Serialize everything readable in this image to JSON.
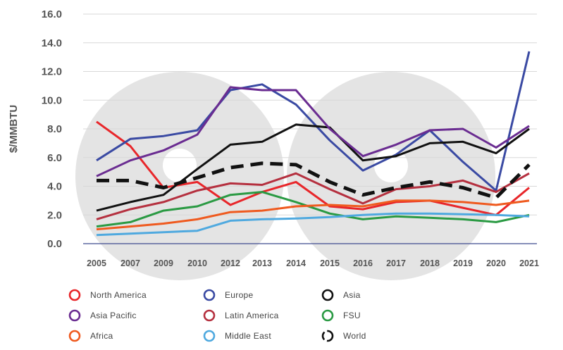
{
  "chart_data": {
    "type": "line",
    "title": "",
    "xlabel": "",
    "ylabel": "$/MMBTU",
    "ylim": [
      0,
      16
    ],
    "yticks": [
      "0.0",
      "2.0",
      "4.0",
      "6.0",
      "8.0",
      "10.0",
      "12.0",
      "14.0",
      "16.0"
    ],
    "categories": [
      "2005",
      "2007",
      "2009",
      "2010",
      "2012",
      "2013",
      "2014",
      "2015",
      "2016",
      "2017",
      "2018",
      "2019",
      "2020",
      "2021"
    ],
    "series": [
      {
        "name": "North America",
        "color": "#e8262a",
        "dashed": false,
        "values": [
          8.5,
          6.8,
          3.9,
          4.3,
          2.7,
          3.6,
          4.3,
          2.6,
          2.4,
          2.9,
          3.0,
          2.5,
          2.0,
          3.9
        ]
      },
      {
        "name": "Europe",
        "color": "#3a4aa3",
        "dashed": false,
        "values": [
          5.8,
          7.3,
          7.5,
          7.9,
          10.7,
          11.1,
          9.7,
          7.2,
          5.1,
          6.2,
          7.9,
          5.7,
          3.7,
          13.4
        ]
      },
      {
        "name": "Asia",
        "color": "#111111",
        "dashed": false,
        "values": [
          2.3,
          2.9,
          3.4,
          5.2,
          6.9,
          7.1,
          8.3,
          8.1,
          5.8,
          6.1,
          7.0,
          7.1,
          6.3,
          8.0
        ]
      },
      {
        "name": "Asia Pacific",
        "color": "#6a2c91",
        "dashed": false,
        "values": [
          4.7,
          5.8,
          6.5,
          7.6,
          10.9,
          10.7,
          10.7,
          8.0,
          6.1,
          6.9,
          7.9,
          8.0,
          6.7,
          8.2
        ]
      },
      {
        "name": "Latin America",
        "color": "#b5303f",
        "dashed": false,
        "values": [
          1.7,
          2.4,
          2.9,
          3.7,
          4.2,
          4.1,
          4.9,
          3.8,
          2.8,
          3.8,
          4.0,
          4.4,
          3.6,
          4.9
        ]
      },
      {
        "name": "FSU",
        "color": "#2a9a43",
        "dashed": false,
        "values": [
          1.2,
          1.5,
          2.3,
          2.6,
          3.4,
          3.6,
          2.9,
          2.1,
          1.7,
          1.9,
          1.8,
          1.7,
          1.5,
          2.0
        ]
      },
      {
        "name": "Africa",
        "color": "#ef5a1f",
        "dashed": false,
        "values": [
          1.0,
          1.2,
          1.4,
          1.7,
          2.2,
          2.3,
          2.6,
          2.7,
          2.6,
          3.0,
          3.0,
          2.9,
          2.7,
          3.0
        ]
      },
      {
        "name": "Middle East",
        "color": "#4fa9df",
        "dashed": false,
        "values": [
          0.6,
          0.7,
          0.8,
          0.9,
          1.6,
          1.7,
          1.75,
          1.85,
          2.0,
          2.1,
          2.1,
          2.05,
          2.0,
          1.9
        ]
      },
      {
        "name": "World",
        "color": "#111111",
        "dashed": true,
        "values": [
          4.4,
          4.4,
          3.9,
          4.6,
          5.3,
          5.6,
          5.5,
          4.3,
          3.4,
          3.9,
          4.3,
          3.9,
          3.2,
          5.5
        ]
      }
    ],
    "legend_position": "bottom",
    "grid": true
  }
}
